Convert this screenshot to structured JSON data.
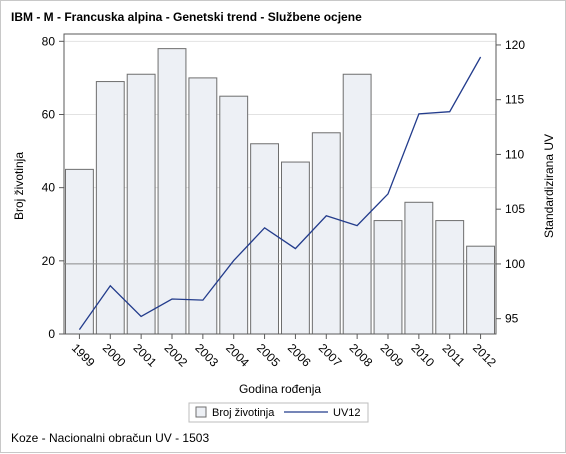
{
  "title": "IBM - M - Francuska alpina - Genetski trend - Službene ocjene",
  "footnote": "Koze - Nacionalni obračun UV - 1503",
  "colors": {
    "bar_fill": "#edf0f5",
    "bar_stroke": "#6e6e6e",
    "line": "#233c8c",
    "grid": "#e2e2e2",
    "reference": "#8a8a8a",
    "axis": "#5a5a5a"
  },
  "chart_data": {
    "type": "bar+line",
    "title": "IBM - M - Francuska alpina - Genetski trend - Službene ocjene",
    "xlabel": "Godina rođenja",
    "ylabel": "Broj životinja",
    "y2label": "Standardizirana UV",
    "categories": [
      "1999",
      "2000",
      "2001",
      "2002",
      "2003",
      "2004",
      "2005",
      "2006",
      "2007",
      "2008",
      "2009",
      "2010",
      "2011",
      "2012"
    ],
    "series": [
      {
        "name": "Broj životinja",
        "type": "bar",
        "axis": "left",
        "values": [
          45,
          69,
          71,
          78,
          70,
          65,
          52,
          47,
          55,
          71,
          31,
          36,
          31,
          24
        ]
      },
      {
        "name": "UV12",
        "type": "line",
        "axis": "right",
        "values": [
          94.0,
          98.0,
          95.2,
          96.8,
          96.7,
          100.3,
          103.3,
          101.4,
          104.4,
          103.5,
          106.4,
          113.7,
          113.9,
          118.9
        ]
      }
    ],
    "ylim": [
      0,
      82
    ],
    "yticks": [
      0,
      20,
      40,
      60,
      80
    ],
    "y2lim": [
      93.6,
      121.0
    ],
    "y2ticks": [
      95,
      100,
      105,
      110,
      115,
      120
    ],
    "reference_line_y2": 100,
    "grid": "horizontal",
    "legend_position": "bottom"
  }
}
